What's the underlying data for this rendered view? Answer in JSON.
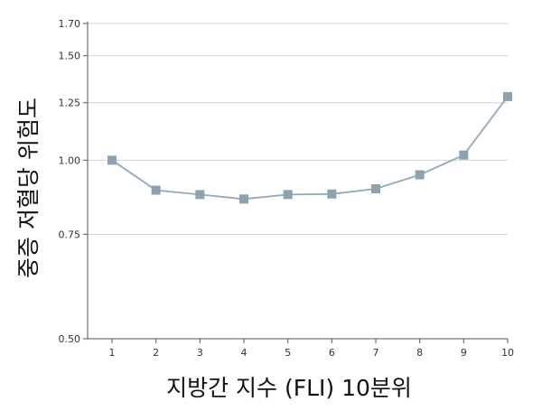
{
  "chart_data": {
    "type": "line",
    "title": "",
    "xlabel": "지방간 지수 (FLI) 10분위",
    "ylabel": "중증 저혈당 위험도",
    "y_scale": "log",
    "ylim": [
      0.5,
      1.7
    ],
    "y_ticks": [
      "0.50",
      "0.75",
      "1.00",
      "1.25",
      "1.50",
      "1.70"
    ],
    "x_ticks": [
      "1",
      "2",
      "3",
      "4",
      "5",
      "6",
      "7",
      "8",
      "9",
      "10"
    ],
    "grid": "horizontal",
    "legend": "none",
    "marker": "square",
    "series": [
      {
        "values": [
          {
            "x": 1,
            "y": 1.0
          },
          {
            "x": 2,
            "y": 0.89
          },
          {
            "x": 3,
            "y": 0.875
          },
          {
            "x": 4,
            "y": 0.86
          },
          {
            "x": 5,
            "y": 0.875
          },
          {
            "x": 6,
            "y": 0.877
          },
          {
            "x": 7,
            "y": 0.895
          },
          {
            "x": 8,
            "y": 0.945
          },
          {
            "x": 9,
            "y": 1.02
          },
          {
            "x": 10,
            "y": 1.28
          }
        ]
      }
    ],
    "colors": {
      "line": "#93aab5",
      "marker": "#8aa3af",
      "grid": "#d4d4d4"
    }
  }
}
